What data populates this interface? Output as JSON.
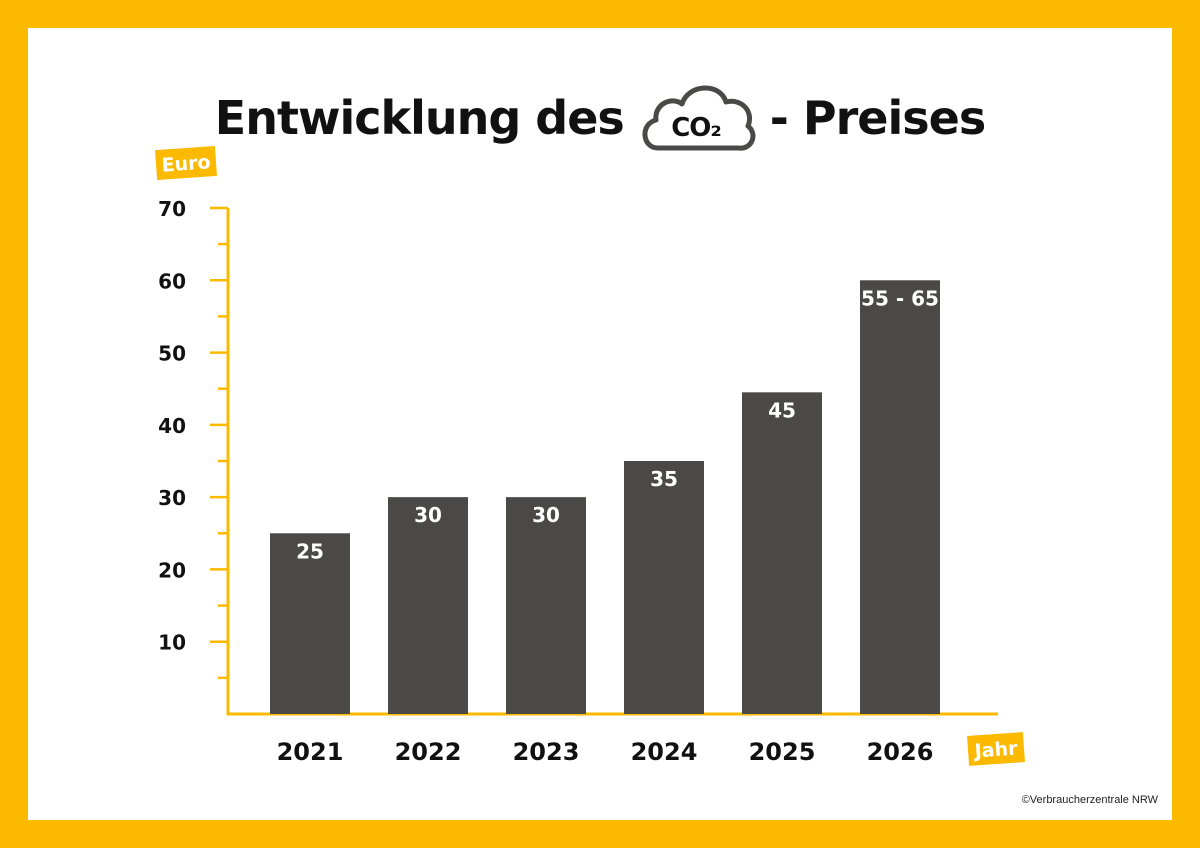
{
  "title": {
    "before": "Entwicklung des",
    "cloud_text": "CO₂",
    "after": "- Preises"
  },
  "colors": {
    "frame": "#fbba00",
    "accent": "#fbba00",
    "bar": "#4a4948",
    "bar_label": "#ffffff",
    "text": "#111111"
  },
  "chart_data": {
    "type": "bar",
    "categories": [
      "2021",
      "2022",
      "2023",
      "2024",
      "2025",
      "2026"
    ],
    "values": [
      25,
      30,
      30,
      35,
      44.5,
      60
    ],
    "data_labels": [
      "25",
      "30",
      "30",
      "35",
      "45",
      "55 - 65"
    ],
    "ylabel": "Euro",
    "xlabel": "Jahr",
    "ylim": [
      0,
      70
    ],
    "yticks": [
      10,
      20,
      30,
      40,
      50,
      60,
      70
    ],
    "minor_ticks_per_major": 1,
    "grid": false,
    "legend": "none"
  },
  "copyright": "©Verbraucherzentrale NRW"
}
